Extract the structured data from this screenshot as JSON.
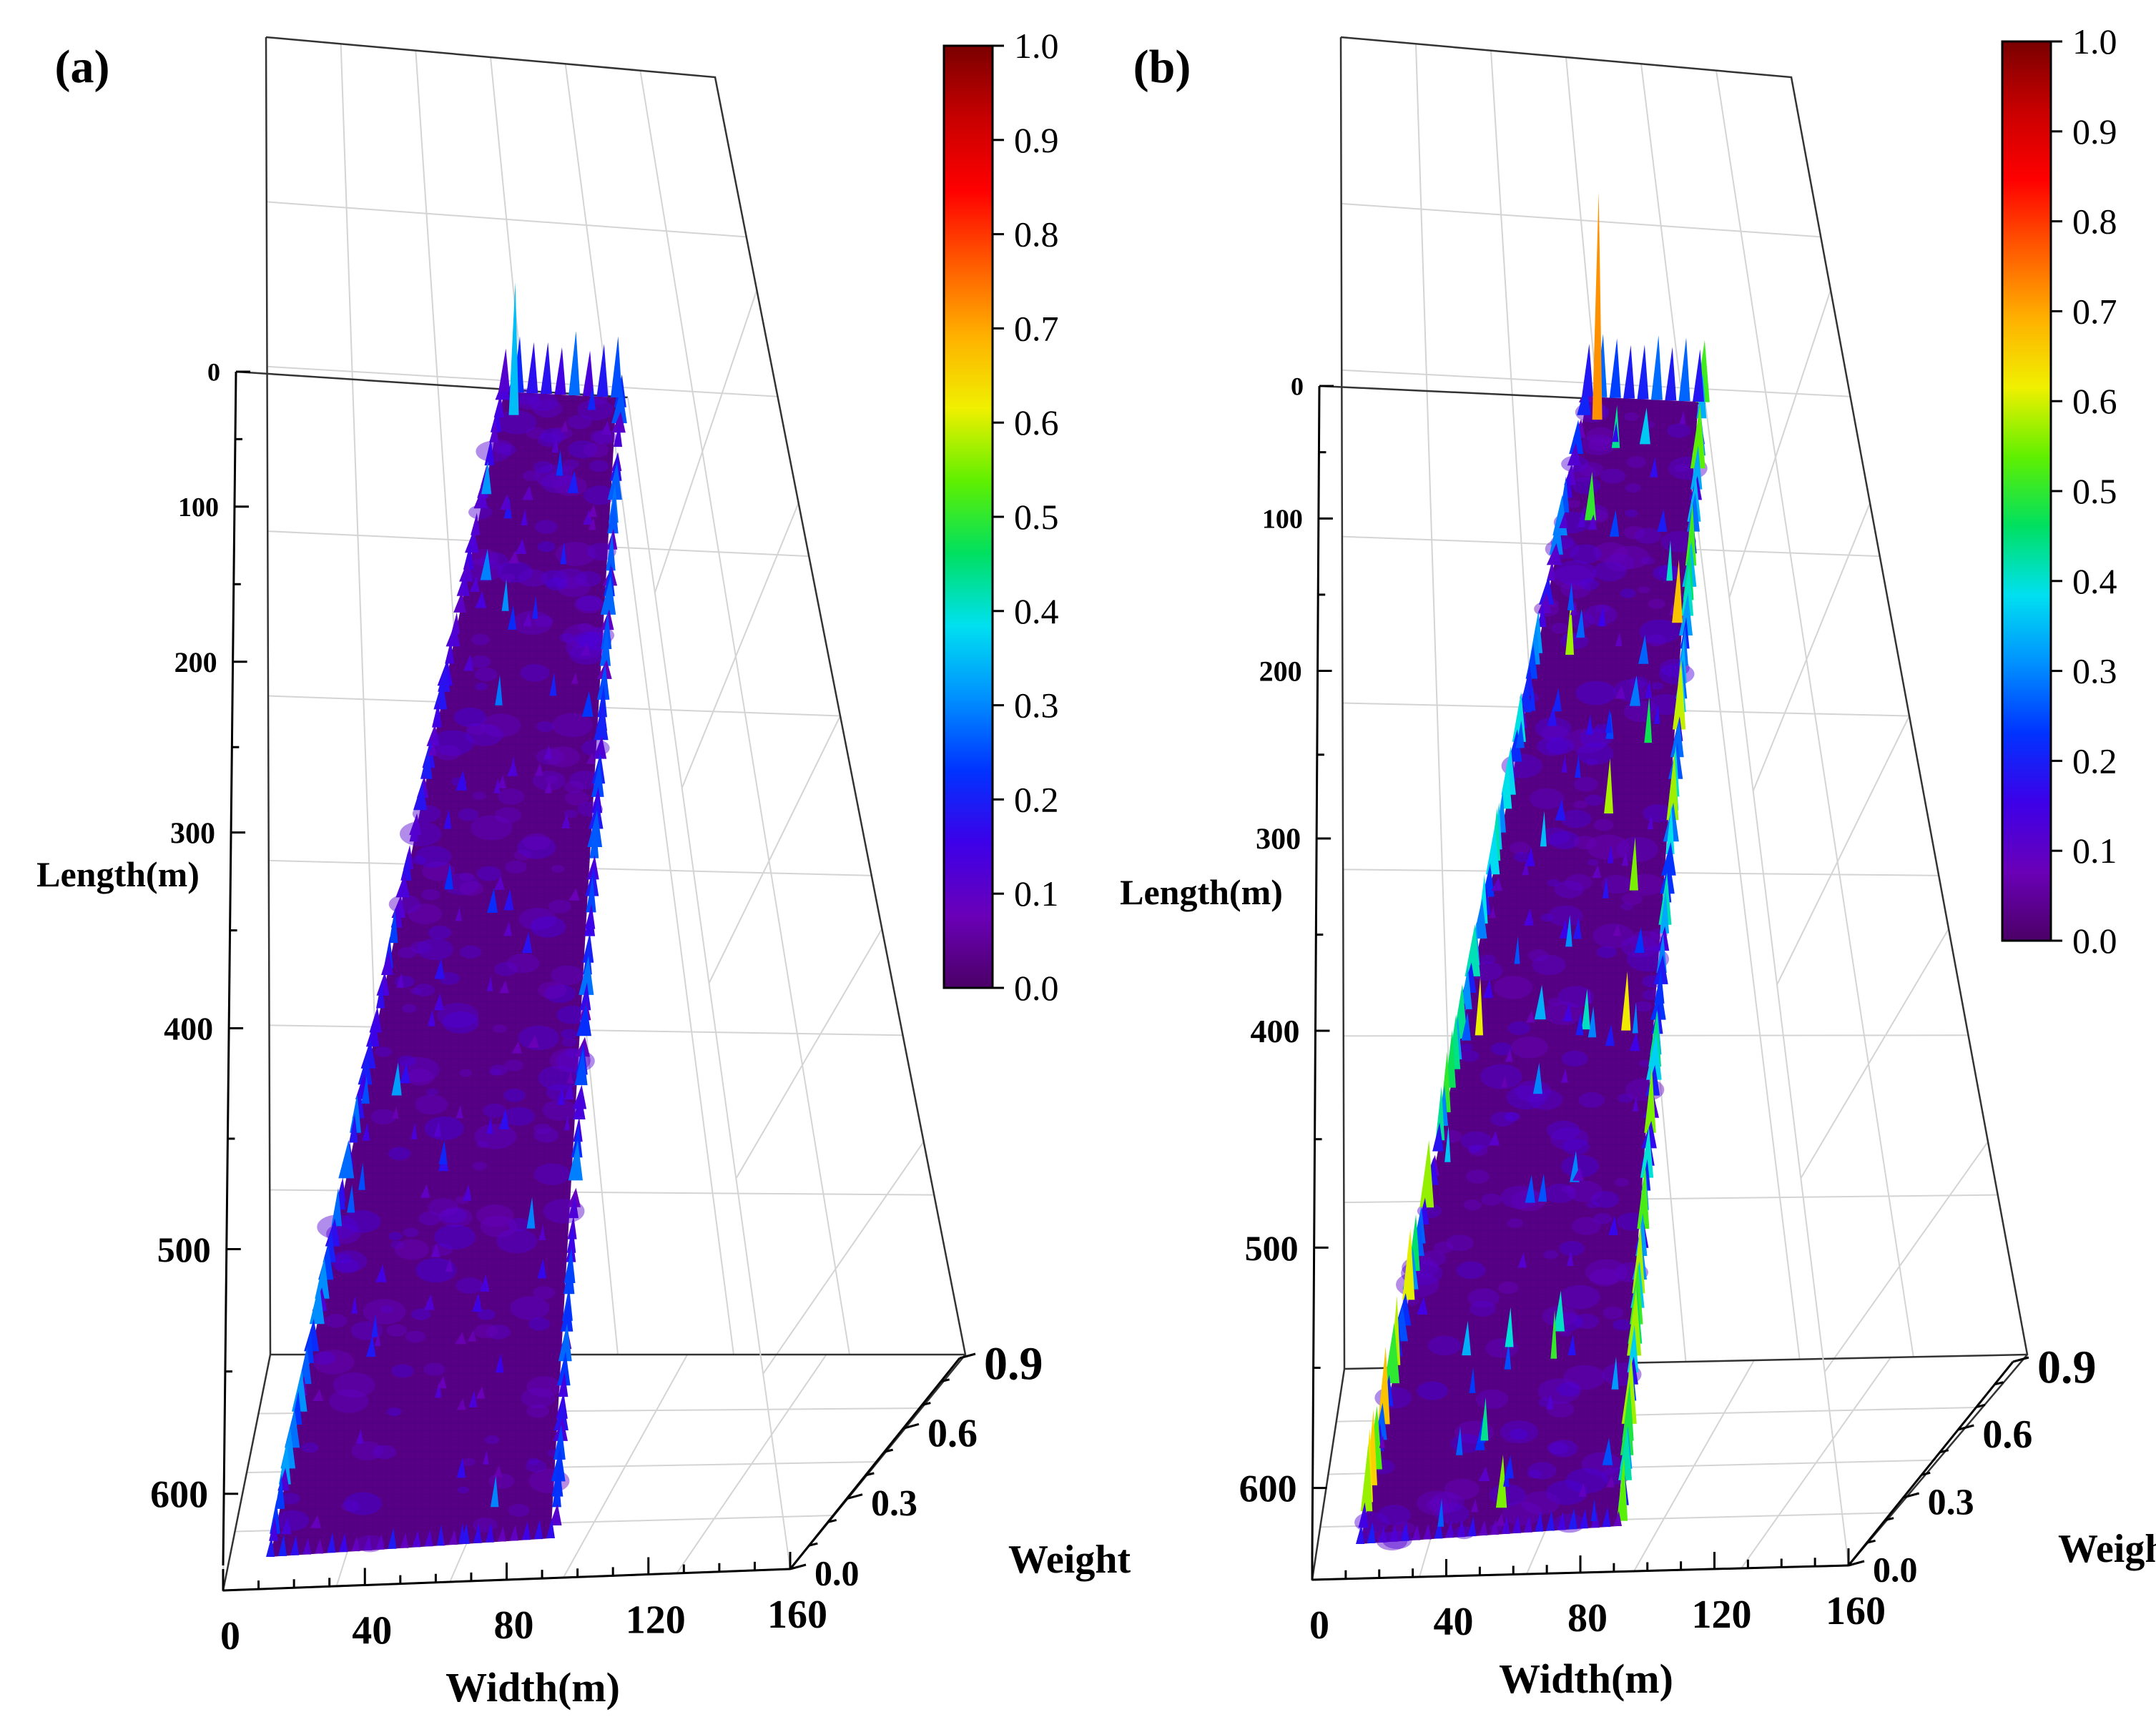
{
  "chart_data": [
    {
      "type": "surface3d",
      "panel_label": "(a)",
      "xlabel": "Width(m)",
      "ylabel": "Length(m)",
      "zlabel": "Weight",
      "x_ticks": [
        "0",
        "40",
        "80",
        "120",
        "160"
      ],
      "y_ticks": [
        "0",
        "100",
        "200",
        "300",
        "400",
        "500",
        "600"
      ],
      "z_ticks": [
        "0.0",
        "0.3",
        "0.6",
        "0.9"
      ],
      "xlim": [
        0,
        160
      ],
      "ylim": [
        0,
        660
      ],
      "zlim": [
        0,
        1.0
      ],
      "colorbar_ticks": [
        "0.0",
        "0.1",
        "0.2",
        "0.3",
        "0.4",
        "0.5",
        "0.6",
        "0.7",
        "0.8",
        "0.9",
        "1.0"
      ],
      "colorbar_range": [
        0.0,
        1.0
      ],
      "colormap": [
        "#4b0066",
        "#6a00b8",
        "#3d00e8",
        "#0033ff",
        "#0090ff",
        "#00e0f0",
        "#00e060",
        "#60f000",
        "#f0f000",
        "#ffb000",
        "#ff5a00",
        "#ff0000",
        "#c80000",
        "#7a0000"
      ],
      "base_weight": 0.03,
      "max_weight": 0.35
    },
    {
      "type": "surface3d",
      "panel_label": "(b)",
      "xlabel": "Width(m)",
      "ylabel": "Length(m)",
      "zlabel": "Weight",
      "x_ticks": [
        "0",
        "40",
        "80",
        "120",
        "160"
      ],
      "y_ticks": [
        "0",
        "100",
        "200",
        "300",
        "400",
        "500",
        "600"
      ],
      "z_ticks": [
        "0.0",
        "0.3",
        "0.6",
        "0.9"
      ],
      "xlim": [
        0,
        160
      ],
      "ylim": [
        0,
        660
      ],
      "zlim": [
        0,
        1.0
      ],
      "colorbar_ticks": [
        "0.0",
        "0.1",
        "0.2",
        "0.3",
        "0.4",
        "0.5",
        "0.6",
        "0.7",
        "0.8",
        "0.9",
        "1.0"
      ],
      "colorbar_range": [
        0.0,
        1.0
      ],
      "colormap": [
        "#4b0066",
        "#6a00b8",
        "#3d00e8",
        "#0033ff",
        "#0090ff",
        "#00e0f0",
        "#00e060",
        "#60f000",
        "#f0f000",
        "#ffb000",
        "#ff5a00",
        "#ff0000",
        "#c80000",
        "#7a0000"
      ],
      "base_weight": 0.03,
      "max_weight": 0.72
    }
  ]
}
